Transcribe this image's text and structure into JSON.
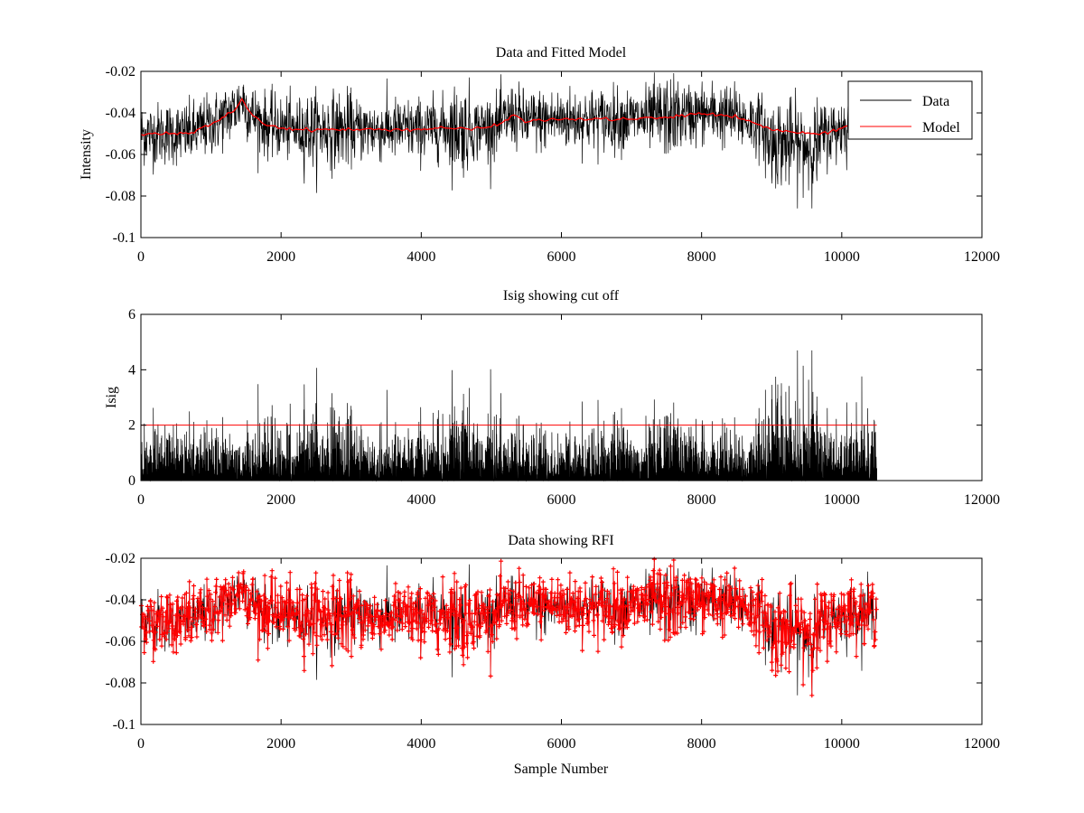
{
  "chart_data": [
    {
      "type": "line",
      "title": "Data and Fitted Model",
      "xlabel": "",
      "ylabel": "Intensity",
      "xlim": [
        0,
        12000
      ],
      "ylim": [
        -0.1,
        -0.02
      ],
      "x_ticks": [
        0,
        2000,
        4000,
        6000,
        8000,
        10000,
        12000
      ],
      "x_tick_labels": [
        "0",
        "2000",
        "4000",
        "6000",
        "8000",
        "10000",
        "12000"
      ],
      "y_ticks": [
        -0.1,
        -0.08,
        -0.06,
        -0.04,
        -0.02
      ],
      "y_tick_labels": [
        "-0.1",
        "-0.08",
        "-0.06",
        "-0.04",
        "-0.02"
      ],
      "legend": {
        "position": "top-right",
        "entries": [
          "Data",
          "Model"
        ]
      },
      "series": [
        {
          "name": "Data",
          "color": "#000000",
          "x_range": [
            0,
            10100
          ],
          "approx_center": -0.046,
          "approx_min": -0.086,
          "approx_max": -0.02
        },
        {
          "name": "Model",
          "color": "#ff0000",
          "points": [
            [
              0,
              -0.05
            ],
            [
              700,
              -0.05
            ],
            [
              1100,
              -0.044
            ],
            [
              1350,
              -0.038
            ],
            [
              1450,
              -0.033
            ],
            [
              1550,
              -0.04
            ],
            [
              1800,
              -0.046
            ],
            [
              2200,
              -0.048
            ],
            [
              3000,
              -0.048
            ],
            [
              4000,
              -0.048
            ],
            [
              4300,
              -0.047
            ],
            [
              4700,
              -0.048
            ],
            [
              5100,
              -0.046
            ],
            [
              5300,
              -0.041
            ],
            [
              5500,
              -0.044
            ],
            [
              6000,
              -0.043
            ],
            [
              7000,
              -0.043
            ],
            [
              7600,
              -0.042
            ],
            [
              8000,
              -0.04
            ],
            [
              8500,
              -0.042
            ],
            [
              9000,
              -0.048
            ],
            [
              9500,
              -0.05
            ],
            [
              9800,
              -0.05
            ],
            [
              10100,
              -0.046
            ]
          ]
        }
      ]
    },
    {
      "type": "line",
      "title": "Isig showing cut off",
      "xlabel": "",
      "ylabel": "Isig",
      "xlim": [
        0,
        12000
      ],
      "ylim": [
        0,
        6
      ],
      "x_ticks": [
        0,
        2000,
        4000,
        6000,
        8000,
        10000,
        12000
      ],
      "x_tick_labels": [
        "0",
        "2000",
        "4000",
        "6000",
        "8000",
        "10000",
        "12000"
      ],
      "y_ticks": [
        0,
        2,
        4,
        6
      ],
      "y_tick_labels": [
        "0",
        "2",
        "4",
        "6"
      ],
      "series": [
        {
          "name": "Isig",
          "color": "#000000",
          "x_range": [
            0,
            10500
          ],
          "approx_min": 0,
          "approx_max": 4.7
        },
        {
          "name": "Cut off",
          "color": "#ff0000",
          "points": [
            [
              0,
              2
            ],
            [
              10500,
              2
            ]
          ]
        }
      ]
    },
    {
      "type": "line",
      "title": "Data showing RFI",
      "xlabel": "Sample Number",
      "ylabel": "",
      "xlim": [
        0,
        12000
      ],
      "ylim": [
        -0.1,
        -0.02
      ],
      "x_ticks": [
        0,
        2000,
        4000,
        6000,
        8000,
        10000,
        12000
      ],
      "x_tick_labels": [
        "0",
        "2000",
        "4000",
        "6000",
        "8000",
        "10000",
        "12000"
      ],
      "y_ticks": [
        -0.1,
        -0.08,
        -0.06,
        -0.04,
        -0.02
      ],
      "y_tick_labels": [
        "-0.1",
        "-0.08",
        "-0.06",
        "-0.04",
        "-0.02"
      ],
      "series": [
        {
          "name": "Data",
          "color": "#000000",
          "x_range": [
            0,
            10500
          ],
          "approx_center": -0.046,
          "approx_min": -0.086,
          "approx_max": -0.02
        },
        {
          "name": "RFI",
          "color": "#ff0000",
          "marker": "+"
        }
      ]
    }
  ]
}
